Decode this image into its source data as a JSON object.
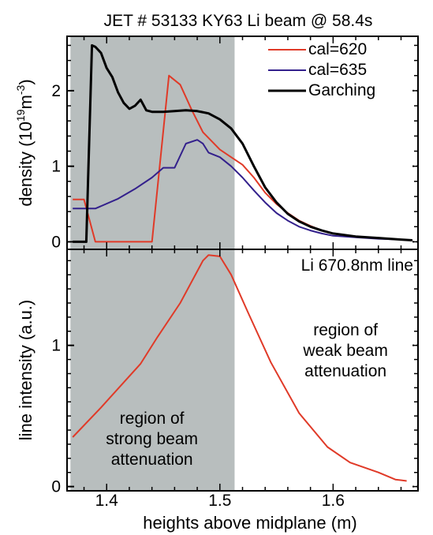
{
  "title": "JET # 53133  KY63 Li beam @ 58.4s",
  "xlabel": "heights above midplane (m)",
  "x_ticks": [
    "1.4",
    "1.5",
    "1.6"
  ],
  "colors": {
    "shade": "#b8bebe",
    "cal620": "#e03a28",
    "cal635": "#33208c",
    "garching": "#000000",
    "line_intensity": "#e03a28"
  },
  "chart_data": [
    {
      "type": "line",
      "panel": "top",
      "ylabel": "density (10",
      "ylabel_exp": "19",
      "ylabel_unit": "m",
      "ylabel_unit_exp": "-3",
      "ylabel_close": ")",
      "xlim": [
        1.365,
        1.675
      ],
      "ylim": [
        -0.1,
        2.72
      ],
      "y_ticks": [
        {
          "value": 0,
          "label": "0"
        },
        {
          "value": 1,
          "label": "1"
        },
        {
          "value": 2,
          "label": "2"
        }
      ],
      "shaded_region": [
        1.368,
        1.513
      ],
      "legend": "top-right",
      "series": [
        {
          "name": "cal=620",
          "color_key": "cal620",
          "x": [
            1.37,
            1.38,
            1.39,
            1.44,
            1.455,
            1.465,
            1.475,
            1.485,
            1.5,
            1.51,
            1.52,
            1.53,
            1.54,
            1.55,
            1.56,
            1.57,
            1.58,
            1.59,
            1.6,
            1.62,
            1.64,
            1.66,
            1.67
          ],
          "values": [
            0.56,
            0.56,
            0.0,
            0.0,
            2.2,
            2.08,
            1.75,
            1.45,
            1.22,
            1.12,
            1.02,
            0.85,
            0.65,
            0.5,
            0.38,
            0.28,
            0.21,
            0.15,
            0.11,
            0.07,
            0.05,
            0.03,
            0.02
          ]
        },
        {
          "name": "cal=635",
          "color_key": "cal635",
          "x": [
            1.37,
            1.39,
            1.41,
            1.425,
            1.44,
            1.45,
            1.46,
            1.47,
            1.48,
            1.485,
            1.49,
            1.5,
            1.51,
            1.52,
            1.53,
            1.54,
            1.55,
            1.56,
            1.57,
            1.58,
            1.59,
            1.6,
            1.62,
            1.64,
            1.66,
            1.67
          ],
          "values": [
            0.44,
            0.44,
            0.57,
            0.7,
            0.85,
            0.98,
            0.98,
            1.3,
            1.35,
            1.3,
            1.18,
            1.12,
            1.0,
            0.85,
            0.68,
            0.52,
            0.38,
            0.28,
            0.2,
            0.15,
            0.11,
            0.08,
            0.06,
            0.04,
            0.03,
            0.02
          ]
        },
        {
          "name": "Garching",
          "color_key": "garching",
          "x": [
            1.37,
            1.382,
            1.387,
            1.39,
            1.395,
            1.4,
            1.405,
            1.41,
            1.415,
            1.42,
            1.425,
            1.43,
            1.435,
            1.44,
            1.45,
            1.46,
            1.47,
            1.48,
            1.49,
            1.5,
            1.51,
            1.52,
            1.53,
            1.54,
            1.55,
            1.56,
            1.57,
            1.58,
            1.59,
            1.6,
            1.62,
            1.64,
            1.66,
            1.67
          ],
          "values": [
            0.0,
            0.0,
            2.6,
            2.58,
            2.5,
            2.3,
            2.18,
            1.98,
            1.84,
            1.76,
            1.8,
            1.88,
            1.74,
            1.72,
            1.72,
            1.73,
            1.74,
            1.73,
            1.7,
            1.62,
            1.5,
            1.3,
            1.0,
            0.72,
            0.52,
            0.37,
            0.27,
            0.2,
            0.15,
            0.11,
            0.07,
            0.05,
            0.03,
            0.02
          ]
        }
      ]
    },
    {
      "type": "line",
      "panel": "bottom",
      "ylabel": "line intensity (a.u.)",
      "xlim": [
        1.365,
        1.675
      ],
      "ylim": [
        -0.03,
        1.68
      ],
      "y_ticks": [
        {
          "value": 0,
          "label": "0"
        },
        {
          "value": 1,
          "label": "1"
        }
      ],
      "shaded_region": [
        1.368,
        1.513
      ],
      "series_label": "Li 670.8nm line",
      "series": [
        {
          "color_key": "line_intensity",
          "x": [
            1.37,
            1.395,
            1.43,
            1.445,
            1.465,
            1.485,
            1.49,
            1.5,
            1.51,
            1.525,
            1.545,
            1.57,
            1.595,
            1.615,
            1.64,
            1.655,
            1.665
          ],
          "values": [
            0.35,
            0.56,
            0.87,
            1.06,
            1.3,
            1.6,
            1.64,
            1.63,
            1.5,
            1.23,
            0.88,
            0.52,
            0.28,
            0.17,
            0.1,
            0.05,
            0.04
          ]
        }
      ],
      "annotations": [
        {
          "lines": [
            "region of",
            "strong beam",
            "attenuation"
          ],
          "x": 1.44
        },
        {
          "lines": [
            "region of",
            "weak beam",
            "attenuation"
          ],
          "x": 1.611
        }
      ]
    }
  ]
}
